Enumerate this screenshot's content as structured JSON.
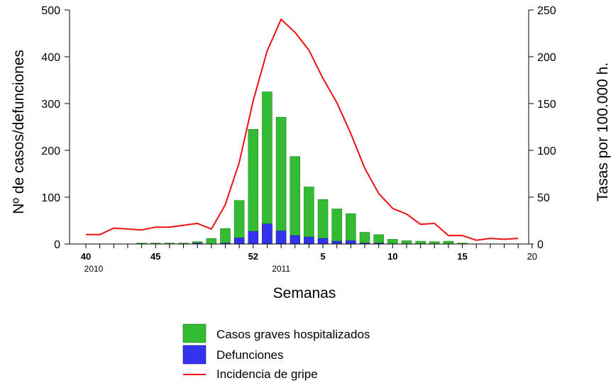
{
  "chart_data": {
    "type": "bar",
    "xlabel": "Semanas",
    "ylabel_left": "Nº de casos/defunciones",
    "ylabel_right": "Tasas por 100.000 h.",
    "ylim_left": [
      0,
      500
    ],
    "ylim_right": [
      0,
      250
    ],
    "yticks_left": [
      "0",
      "100",
      "200",
      "300",
      "400",
      "500"
    ],
    "yticks_right": [
      "0",
      "50",
      "100",
      "150",
      "200",
      "250"
    ],
    "x_tick_labels": [
      {
        "index": 0,
        "label": "40",
        "bold": true
      },
      {
        "index": 5,
        "label": "45",
        "bold": true
      },
      {
        "index": 12,
        "label": "52",
        "bold": true
      },
      {
        "index": 17,
        "label": "5",
        "bold": true
      },
      {
        "index": 22,
        "label": "10",
        "bold": true
      },
      {
        "index": 27,
        "label": "15",
        "bold": true
      },
      {
        "index": 32,
        "label": "20",
        "bold": false
      }
    ],
    "year_labels": [
      {
        "index": 0,
        "label": "2010"
      },
      {
        "index": 14,
        "label": "2011"
      }
    ],
    "weeks": [
      "40",
      "41",
      "42",
      "43",
      "44",
      "45",
      "46",
      "47",
      "48",
      "49",
      "50",
      "51",
      "52",
      "1",
      "2",
      "3",
      "4",
      "5",
      "6",
      "7",
      "8",
      "9",
      "10",
      "11",
      "12",
      "13",
      "14",
      "15",
      "16",
      "17",
      "18",
      "19",
      "20"
    ],
    "series": [
      {
        "name": "Casos graves hospitalizados",
        "kind": "bar",
        "axis": "left",
        "color": "#33bb33",
        "values": [
          0,
          0,
          0,
          0,
          2,
          2,
          2,
          2,
          5,
          12,
          33,
          93,
          245,
          325,
          271,
          187,
          122,
          95,
          75,
          65,
          25,
          20,
          10,
          7,
          6,
          5,
          6,
          2,
          0,
          0,
          0,
          0,
          0
        ]
      },
      {
        "name": "Defunciones",
        "kind": "bar",
        "axis": "left",
        "color": "#3333ee",
        "values": [
          0,
          0,
          0,
          0,
          0,
          0,
          0,
          0,
          2,
          0,
          2,
          13,
          27,
          43,
          28,
          18,
          15,
          12,
          6,
          7,
          2,
          2,
          0,
          0,
          0,
          0,
          0,
          0,
          0,
          0,
          0,
          0,
          0
        ]
      },
      {
        "name": "Incidencia de gripe",
        "kind": "line",
        "axis": "right",
        "color": "#ee1111",
        "values": [
          10,
          10,
          17,
          16,
          15,
          18,
          18,
          20,
          22,
          16,
          42,
          87,
          153,
          206,
          240,
          226,
          207,
          177,
          151,
          118,
          81,
          54,
          38,
          32,
          21,
          22,
          9,
          9,
          4,
          6,
          5,
          6,
          null
        ]
      }
    ]
  }
}
